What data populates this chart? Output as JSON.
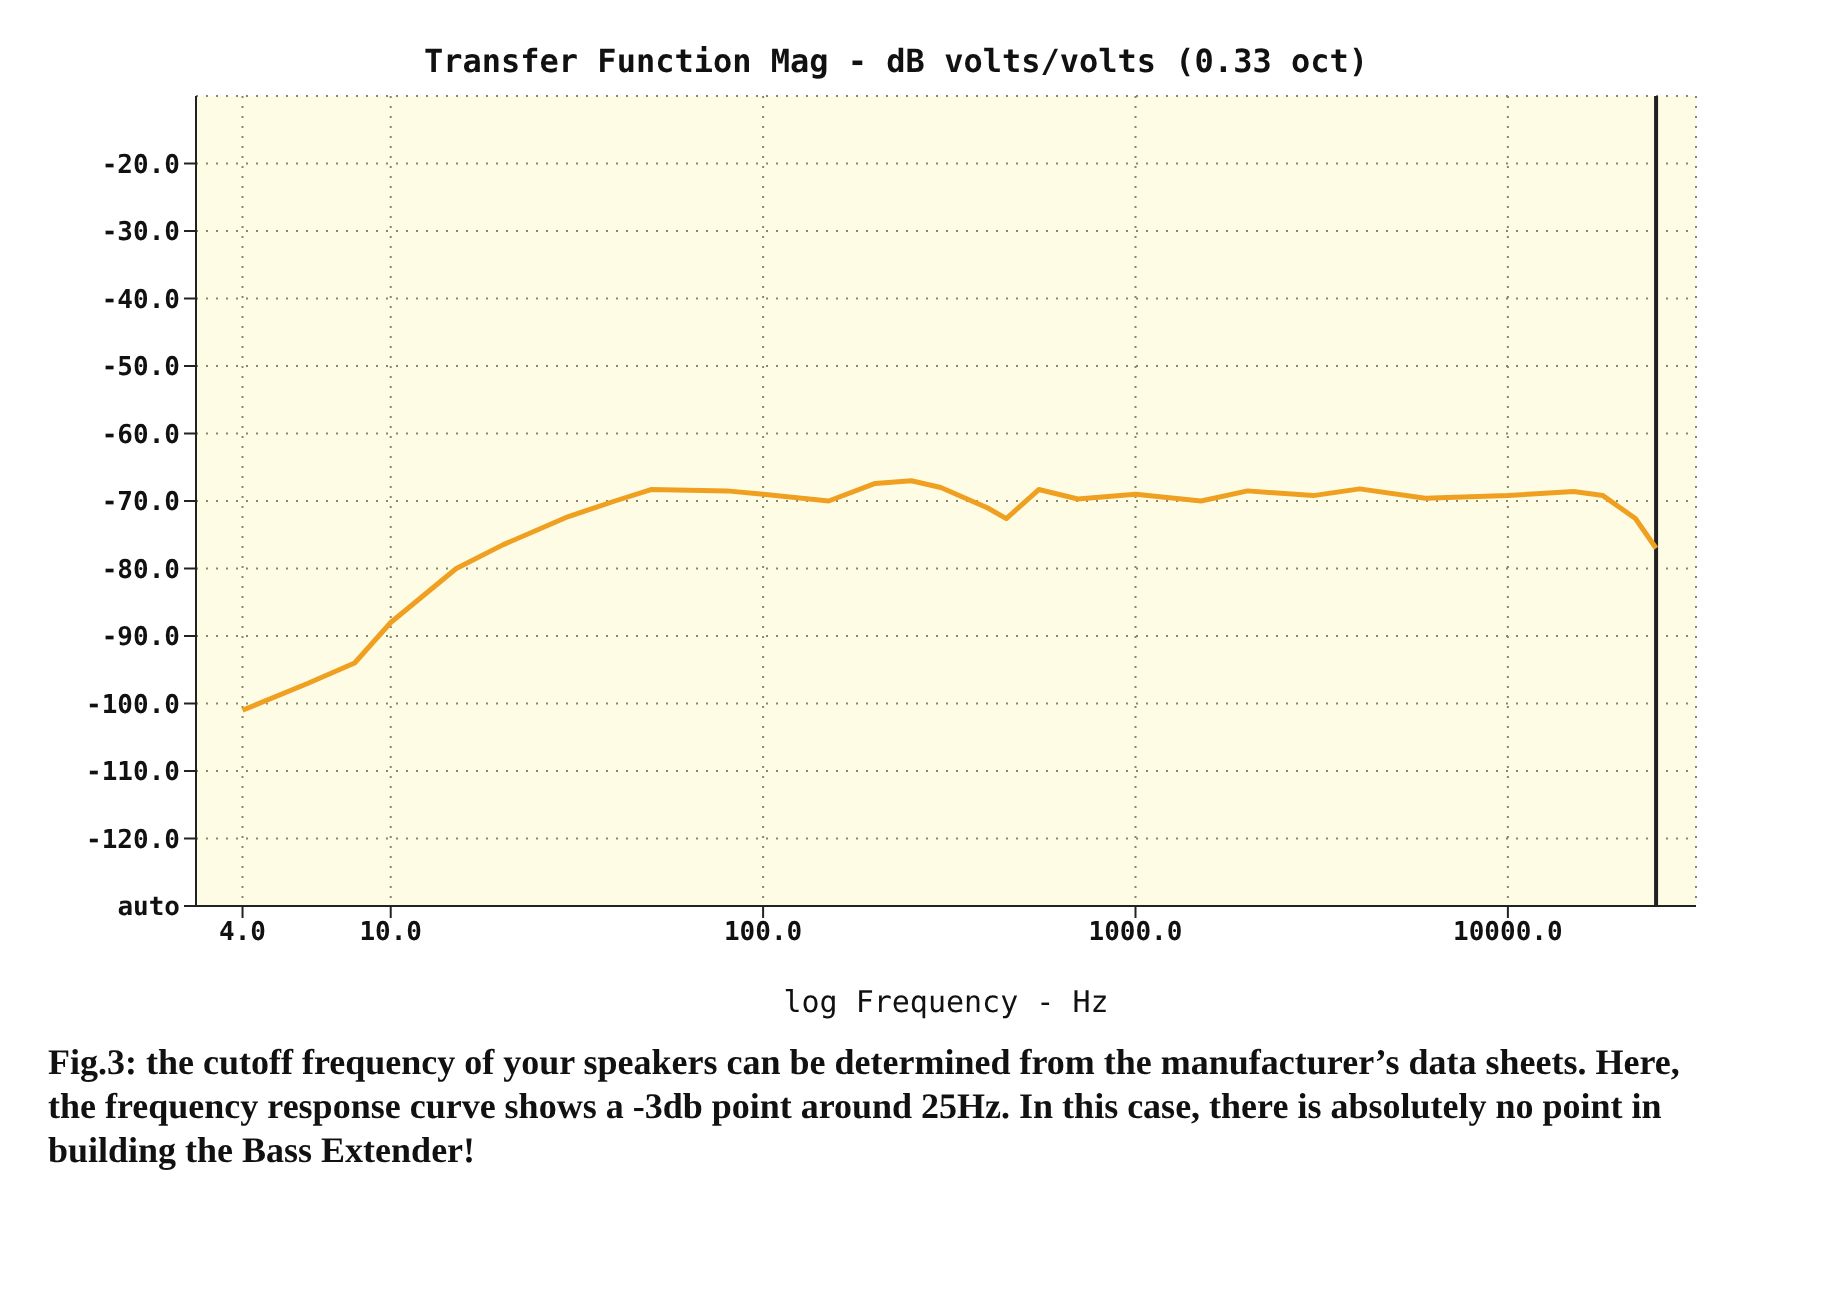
{
  "chart_data": {
    "type": "line",
    "title": "Transfer Function Mag - dB volts/volts (0.33 oct)",
    "xlabel": "log Frequency - Hz",
    "annotations": [
      "Fig.3: the cutoff frequency of your speakers can be determined from the manufacturer’s data sheets. Here, the frequency response curve shows a -3db point around 25Hz. In this case, there is absolutely no point in building the Bass Extender!"
    ],
    "log": "x",
    "grid": true,
    "marker": "none",
    "line_style": "solid",
    "xlim": [
      3,
      32000
    ],
    "xticks": [
      {
        "value": 4,
        "label": "4.0"
      },
      {
        "value": 10,
        "label": "10.0"
      },
      {
        "value": 100,
        "label": "100.0"
      },
      {
        "value": 1000,
        "label": "1000.0"
      },
      {
        "value": 10000,
        "label": "10000.0"
      }
    ],
    "ylim": [
      -130,
      -10
    ],
    "yticks": [
      {
        "value": -20,
        "label": "-20.0"
      },
      {
        "value": -30,
        "label": "-30.0"
      },
      {
        "value": -40,
        "label": "-40.0"
      },
      {
        "value": -50,
        "label": "-50.0"
      },
      {
        "value": -60,
        "label": "-60.0"
      },
      {
        "value": -70,
        "label": "-70.0"
      },
      {
        "value": -80,
        "label": "-80.0"
      },
      {
        "value": -90,
        "label": "-90.0"
      },
      {
        "value": -100,
        "label": "-100.0"
      },
      {
        "value": -110,
        "label": "-110.0"
      },
      {
        "value": -120,
        "label": "-120.0"
      },
      {
        "value": -130,
        "label": "auto"
      }
    ],
    "ref_lines": [
      {
        "axis": "x",
        "value": 25000,
        "label": null,
        "color": "#222222"
      }
    ],
    "x": [
      4,
      6,
      8,
      10,
      15,
      20,
      30,
      40,
      50,
      80,
      100,
      150,
      200,
      250,
      300,
      400,
      450,
      550,
      700,
      1000,
      1500,
      2000,
      3000,
      4000,
      6000,
      10000,
      15000,
      18000,
      22000,
      25000
    ],
    "series": [
      {
        "color": "#f0a020",
        "values": [
          -101,
          -97,
          -94,
          -88,
          -80,
          -76.5,
          -72.3,
          -70,
          -68.3,
          -68.5,
          -69,
          -70,
          -67.4,
          -67,
          -68,
          -71,
          -72.6,
          -68.3,
          -69.7,
          -69,
          -70,
          -68.5,
          -69.2,
          -68.2,
          -69.6,
          -69.2,
          -68.6,
          -69.2,
          -72.6,
          -77
        ]
      }
    ]
  }
}
